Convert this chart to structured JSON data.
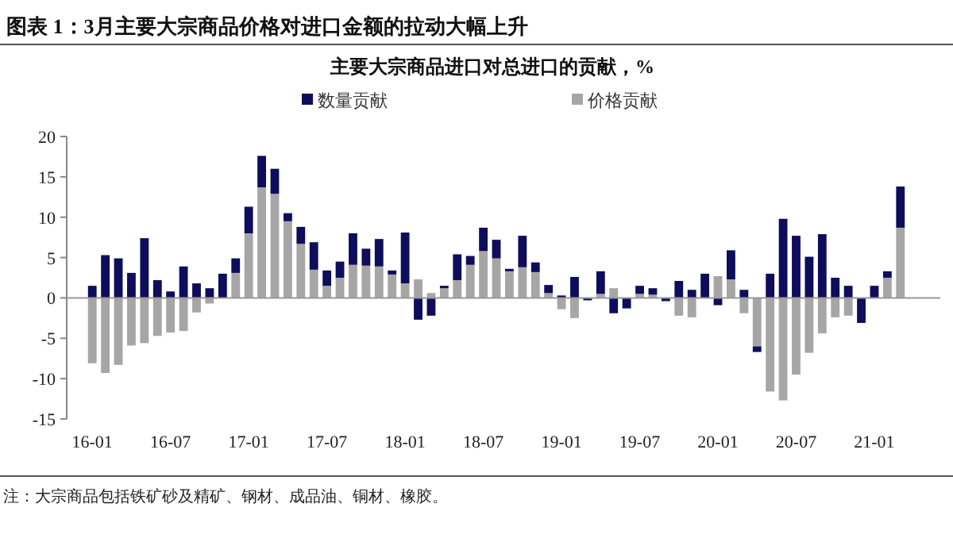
{
  "chart_data": {
    "type": "bar",
    "stacked": true,
    "title": "主要大宗商品进口对总进口的贡献，%",
    "annotations": [
      "图表 1：3月主要大宗商品价格对进口金额的拉动大幅上升",
      "注：大宗商品包括铁矿砂及精矿、钢材、成品油、铜材、橡胶。"
    ],
    "categories": [
      "16-01",
      null,
      null,
      null,
      null,
      null,
      "16-07",
      null,
      null,
      null,
      null,
      null,
      "17-01",
      null,
      null,
      null,
      null,
      null,
      "17-07",
      null,
      null,
      null,
      null,
      null,
      "18-01",
      null,
      null,
      null,
      null,
      null,
      "18-07",
      null,
      null,
      null,
      null,
      null,
      "19-01",
      null,
      null,
      null,
      null,
      null,
      "19-07",
      null,
      null,
      null,
      null,
      null,
      "20-01",
      null,
      null,
      null,
      null,
      null,
      "20-07",
      null,
      null,
      null,
      null,
      null,
      "21-01",
      null,
      null
    ],
    "series": [
      {
        "name": "价格贡献",
        "color": "#a6a6a6",
        "values": [
          -8.1,
          -9.3,
          -8.3,
          -5.9,
          -5.6,
          -4.7,
          -4.3,
          -4.1,
          -1.8,
          -0.7,
          0,
          3.1,
          8.0,
          13.7,
          12.9,
          9.5,
          6.7,
          3.5,
          1.5,
          2.5,
          4.1,
          4.0,
          3.9,
          2.9,
          1.8,
          2.3,
          0.6,
          1.2,
          2.2,
          4.1,
          5.8,
          4.9,
          3.3,
          3.8,
          3.2,
          0.6,
          -1.4,
          -2.5,
          0,
          0.5,
          1.2,
          0,
          0.5,
          0.4,
          0,
          -2.2,
          -2.4,
          null,
          2.7,
          2.3,
          -1.9,
          -6.0,
          -11.6,
          -12.7,
          -9.5,
          -6.8,
          -4.4,
          -2.4,
          -2.2,
          0,
          null,
          2.5,
          8.7
        ]
      },
      {
        "name": "数量贡献",
        "color": "#0d0d5c",
        "values": [
          1.5,
          5.3,
          4.9,
          3.1,
          7.4,
          2.2,
          0.8,
          3.9,
          1.8,
          1.2,
          3.0,
          1.8,
          3.3,
          3.9,
          3.1,
          1.0,
          2.1,
          3.4,
          1.9,
          2.0,
          3.9,
          2.1,
          3.4,
          0.5,
          6.3,
          -2.7,
          -2.2,
          0.3,
          3.2,
          1.1,
          2.9,
          2.3,
          0.3,
          3.9,
          1.2,
          1.0,
          0.3,
          2.6,
          -0.3,
          2.8,
          -1.9,
          -1.3,
          1.0,
          0.8,
          -0.4,
          2.1,
          1.0,
          3.0,
          -0.9,
          3.6,
          1.0,
          -0.7,
          3.0,
          9.8,
          7.7,
          5.1,
          7.9,
          2.5,
          1.5,
          -3.1,
          1.5,
          0.8,
          5.1
        ]
      }
    ],
    "ylim": [
      -15,
      20
    ],
    "yticks": [
      -15,
      -10,
      -5,
      0,
      5,
      10,
      15,
      20
    ],
    "legend": "top"
  }
}
